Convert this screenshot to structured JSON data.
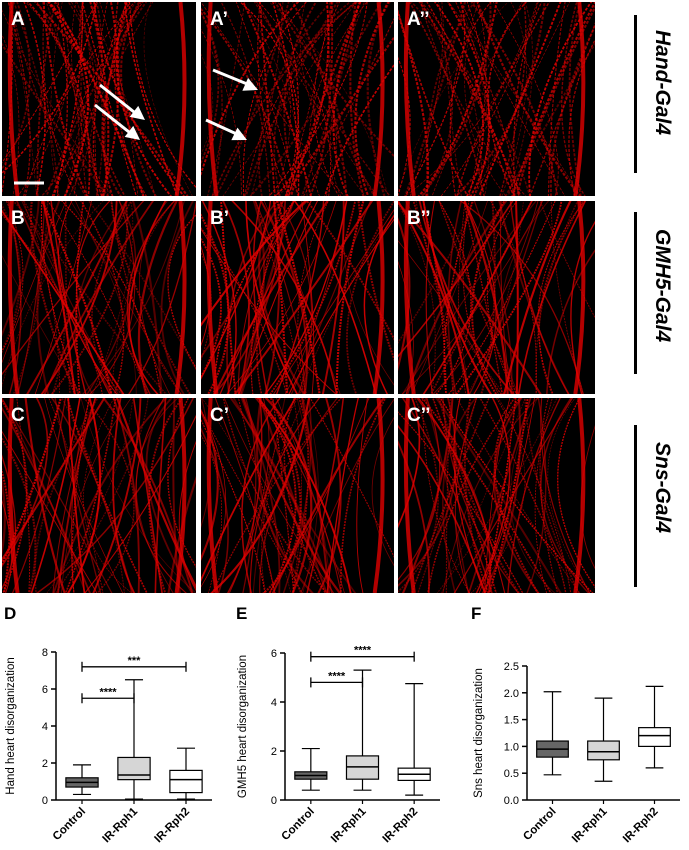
{
  "micro_panels": [
    {
      "label": "A"
    },
    {
      "label": "A’"
    },
    {
      "label": "A’’"
    },
    {
      "label": "B"
    },
    {
      "label": "B’"
    },
    {
      "label": "B’’"
    },
    {
      "label": "C"
    },
    {
      "label": "C’"
    },
    {
      "label": "C’’"
    }
  ],
  "drivers": [
    "Hand-Gal4",
    "GMH5-Gal4",
    "Sns-Gal4"
  ],
  "colors": {
    "stain": "#e00000",
    "background": "#000000",
    "control_box": "#666666",
    "rph1_box": "#d6d6d6",
    "rph2_box": "#ffffff"
  },
  "chart_data": [
    {
      "panel": "D",
      "type": "box",
      "categories": [
        "Control",
        "IR-Rph1",
        "IR-Rph2"
      ],
      "ylabel": "Hand heart disorganization",
      "ylim": [
        0,
        8
      ],
      "yticks": [
        0,
        2,
        4,
        6,
        8
      ],
      "boxes": [
        {
          "min": 0.3,
          "q1": 0.7,
          "median": 0.95,
          "q3": 1.2,
          "max": 1.9
        },
        {
          "min": 0.05,
          "q1": 1.1,
          "median": 1.35,
          "q3": 2.3,
          "max": 6.5
        },
        {
          "min": 0.05,
          "q1": 0.4,
          "median": 1.1,
          "q3": 1.6,
          "max": 2.8
        }
      ],
      "significance": [
        {
          "from": 0,
          "to": 1,
          "label": "****",
          "y": 5.5
        },
        {
          "from": 0,
          "to": 2,
          "label": "***",
          "y": 7.2
        }
      ]
    },
    {
      "panel": "E",
      "type": "box",
      "categories": [
        "Control",
        "IR-Rph1",
        "IR-Rph2"
      ],
      "ylabel": "GMH5 heart disorganization",
      "ylim": [
        0,
        6
      ],
      "yticks": [
        0,
        2,
        4,
        6
      ],
      "boxes": [
        {
          "min": 0.4,
          "q1": 0.85,
          "median": 1.0,
          "q3": 1.15,
          "max": 2.1
        },
        {
          "min": 0.4,
          "q1": 0.85,
          "median": 1.35,
          "q3": 1.8,
          "max": 5.3
        },
        {
          "min": 0.2,
          "q1": 0.8,
          "median": 1.05,
          "q3": 1.3,
          "max": 4.75
        }
      ],
      "significance": [
        {
          "from": 0,
          "to": 1,
          "label": "****",
          "y": 4.8
        },
        {
          "from": 0,
          "to": 2,
          "label": "****",
          "y": 5.85
        }
      ]
    },
    {
      "panel": "F",
      "type": "box",
      "categories": [
        "Control",
        "IR-Rph1",
        "IR-Rph2"
      ],
      "ylabel": "Sns heart disorganization",
      "ylim": [
        0,
        2.5
      ],
      "yticks": [
        "0.0",
        "0.5",
        "1.0",
        "1.5",
        "2.0",
        "2.5"
      ],
      "boxes": [
        {
          "min": 0.47,
          "q1": 0.8,
          "median": 0.95,
          "q3": 1.1,
          "max": 2.02
        },
        {
          "min": 0.35,
          "q1": 0.75,
          "median": 0.9,
          "q3": 1.1,
          "max": 1.9
        },
        {
          "min": 0.6,
          "q1": 1.0,
          "median": 1.2,
          "q3": 1.35,
          "max": 2.12
        }
      ],
      "significance": []
    }
  ]
}
